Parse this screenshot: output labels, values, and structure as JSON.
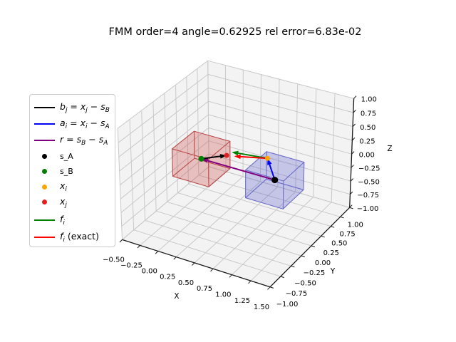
{
  "title": "FMM order=4 angle=0.62925 rel error=6.83e-02",
  "axes": {
    "x_label": "X",
    "y_label": "Y",
    "z_label": "Z",
    "x_tick_values": [
      -0.5,
      -0.25,
      0,
      0.25,
      0.5,
      0.75,
      1,
      1.25,
      1.5
    ],
    "x_tick_labels": [
      "−0.50",
      "−0.25",
      "0.00",
      "0.25",
      "0.50",
      "0.75",
      "1.00",
      "1.25",
      "1.50"
    ],
    "y_tick_values": [
      -1,
      -0.75,
      -0.5,
      -0.25,
      0,
      0.25,
      0.5,
      0.75,
      1
    ],
    "y_tick_labels": [
      "−1.00",
      "−0.75",
      "−0.50",
      "−0.25",
      "0.00",
      "0.25",
      "0.50",
      "0.75",
      "1.00"
    ],
    "z_tick_values": [
      -1,
      -0.75,
      -0.5,
      -0.25,
      0,
      0.25,
      0.5,
      0.75,
      1
    ],
    "z_tick_labels": [
      "−1.00",
      "−0.75",
      "−0.50",
      "−0.25",
      "0.00",
      "0.25",
      "0.50",
      "0.75",
      "1.00"
    ]
  },
  "legend": {
    "items": [
      {
        "name": "b_j",
        "marker": "line",
        "color": "#000000",
        "fmt": "math",
        "segs": [
          [
            "b",
            "i"
          ],
          [
            "j",
            "s"
          ],
          [
            " = ",
            "n"
          ],
          [
            "x",
            "i"
          ],
          [
            "j",
            "s"
          ],
          [
            " − ",
            "n"
          ],
          [
            "s",
            "i"
          ],
          [
            "B",
            "s"
          ]
        ]
      },
      {
        "name": "a_i",
        "marker": "line",
        "color": "#0000ff",
        "fmt": "math",
        "segs": [
          [
            "a",
            "i"
          ],
          [
            "i",
            "s"
          ],
          [
            " = ",
            "n"
          ],
          [
            "x",
            "i"
          ],
          [
            "i",
            "s"
          ],
          [
            " − ",
            "n"
          ],
          [
            "s",
            "i"
          ],
          [
            "A",
            "s"
          ]
        ]
      },
      {
        "name": "r",
        "marker": "line",
        "color": "#800080",
        "fmt": "math",
        "segs": [
          [
            "r",
            "i"
          ],
          [
            " = ",
            "n"
          ],
          [
            "s",
            "i"
          ],
          [
            "B",
            "s"
          ],
          [
            " − ",
            "n"
          ],
          [
            "s",
            "i"
          ],
          [
            "A",
            "s"
          ]
        ]
      },
      {
        "name": "s_A",
        "marker": "dot",
        "color": "#000000",
        "fmt": "plain",
        "segs": [
          [
            "s_A",
            "n"
          ]
        ]
      },
      {
        "name": "s_B",
        "marker": "dot",
        "color": "#008000",
        "fmt": "plain",
        "segs": [
          [
            "s_B",
            "n"
          ]
        ]
      },
      {
        "name": "x_i",
        "marker": "dot",
        "color": "#ffa500",
        "fmt": "math",
        "segs": [
          [
            "x",
            "i"
          ],
          [
            "i",
            "s"
          ]
        ]
      },
      {
        "name": "x_j",
        "marker": "dot",
        "color": "#e02020",
        "fmt": "math",
        "segs": [
          [
            "x",
            "i"
          ],
          [
            "j",
            "s"
          ]
        ]
      },
      {
        "name": "f_i",
        "marker": "line",
        "color": "#008000",
        "fmt": "math",
        "segs": [
          [
            "f",
            "i"
          ],
          [
            "i",
            "s"
          ]
        ]
      },
      {
        "name": "f_i_exact",
        "marker": "line",
        "color": "#ff0000",
        "fmt": "math",
        "segs": [
          [
            "f",
            "i"
          ],
          [
            "i",
            "s"
          ],
          [
            " (exact)",
            "n"
          ]
        ]
      }
    ]
  },
  "chart_data": {
    "type": "3d-quiver-scatter",
    "title": "FMM order=4 angle=0.62925 rel error=6.83e-02",
    "fmm_order": 4,
    "angle": 0.62925,
    "rel_error": "6.83e-02",
    "xlim": [
      -0.5,
      1.5
    ],
    "ylim": [
      -1,
      1
    ],
    "zlim": [
      -1,
      1
    ],
    "grid": true,
    "view": {
      "elev": 30,
      "azim": -60
    },
    "points": [
      {
        "name": "s_A",
        "xyz": [
          1,
          0,
          0
        ],
        "color": "#000000",
        "r": 4.5
      },
      {
        "name": "s_B",
        "xyz": [
          0,
          0,
          0
        ],
        "color": "#008000",
        "r": 4
      },
      {
        "name": "x_i",
        "xyz": [
          0.9,
          0,
          0.35
        ],
        "color": "#ffa500",
        "r": 3.5
      },
      {
        "name": "x_j",
        "xyz": [
          0.32,
          0.05,
          0.15
        ],
        "color": "#e02020",
        "r": 3.5
      }
    ],
    "boxes": [
      {
        "name": "box_B_red",
        "center": [
          0,
          0,
          0
        ],
        "half": 0.25,
        "face": "rgba(205,70,70,0.16)",
        "edge": "rgba(185,75,75,0.85)"
      },
      {
        "name": "box_A_blue",
        "center": [
          1,
          0,
          0
        ],
        "half": 0.25,
        "face": "rgba(70,70,205,0.14)",
        "edge": "rgba(110,110,200,0.85)"
      }
    ],
    "vectors": [
      {
        "name": "r",
        "from": [
          1,
          0,
          0
        ],
        "to": [
          0,
          0,
          0
        ],
        "color": "#800080"
      },
      {
        "name": "b_j",
        "from": [
          0,
          0,
          0
        ],
        "to": [
          0.32,
          0.05,
          0.15
        ],
        "color": "#000000"
      },
      {
        "name": "a_i",
        "from": [
          1,
          0,
          0
        ],
        "to": [
          0.9,
          0,
          0.35
        ],
        "color": "#0000ff"
      },
      {
        "name": "f_i",
        "from": [
          0.9,
          0,
          0.35
        ],
        "to": [
          0.42,
          0,
          0.28
        ],
        "color": "#008000"
      },
      {
        "name": "f_i_exact",
        "from": [
          0.9,
          0,
          0.35
        ],
        "to": [
          0.44,
          0.02,
          0.2
        ],
        "color": "#ff0000"
      }
    ]
  },
  "style": {
    "pane_color": "#f3f3f3",
    "grid_color": "#c9c9c9",
    "spine_color": "#1a1a1a",
    "background": "#ffffff"
  }
}
